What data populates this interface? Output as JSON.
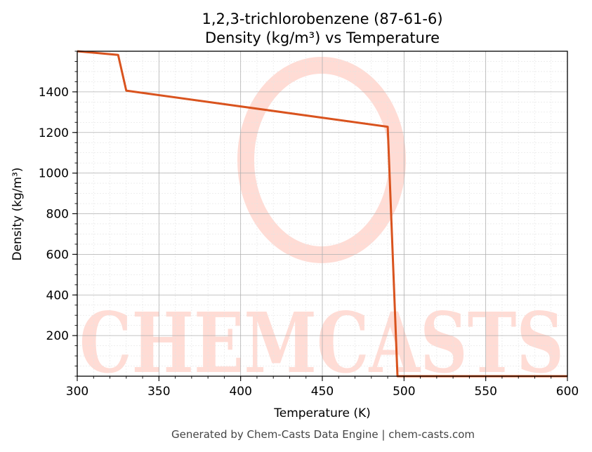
{
  "chart_data": {
    "type": "line",
    "title": "1,2,3-trichlorobenzene (87-61-6)",
    "subtitle": "Density (kg/m³) vs Temperature",
    "xlabel": "Temperature (K)",
    "ylabel": "Density (kg/m³)",
    "xlim": [
      300,
      600
    ],
    "ylim": [
      0,
      1600
    ],
    "xticks": [
      300,
      350,
      400,
      450,
      500,
      550,
      600
    ],
    "yticks": [
      200,
      400,
      600,
      800,
      1000,
      1200,
      1400
    ],
    "grid": true,
    "legend": "none",
    "line_color": "#d9531e",
    "series": [
      {
        "x": [
          300,
          325,
          330,
          490,
          496,
          600
        ],
        "y": [
          1600,
          1582,
          1406,
          1228,
          0,
          0
        ]
      }
    ]
  },
  "watermark": {
    "text": "CHEMCASTS",
    "color": "#ffdcd5"
  },
  "footer": "Generated by Chem-Casts Data Engine | chem-casts.com"
}
